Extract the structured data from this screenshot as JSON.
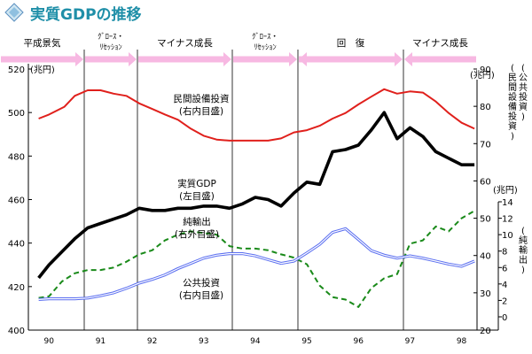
{
  "header": {
    "title": "実質GDPの推移",
    "colors": {
      "title": "#1f8fa8",
      "diamond_light": "#cfe6f2",
      "diamond_dark": "#5b8fbf"
    }
  },
  "phase_labels": [
    "平成景気",
    "ｸﾞﾛｰｽ・\nﾘｾｯｼｮﾝ",
    "マイナス成長",
    "ｸﾞﾛｰｽ・\nﾘｾｯｼｮﾝ",
    "回　復",
    "マイナス成長"
  ],
  "phase_arrow_color": "#f7b8e2",
  "chart_data": {
    "type": "line",
    "x_tick_labels": [
      "90",
      "91",
      "92",
      "93",
      "94",
      "95",
      "96",
      "97",
      "98"
    ],
    "xlim": [
      1989.6,
      1998.3
    ],
    "left_axis": {
      "unit_label": "(兆円)",
      "ylim": [
        400,
        520
      ],
      "ticks": [
        400,
        420,
        440,
        460,
        480,
        500,
        520
      ]
    },
    "right_inner_axis": {
      "unit_label": "(兆円)",
      "vertical_label": "(民間設備投資)",
      "ylim": [
        20,
        90
      ],
      "ticks": [
        20,
        30,
        40,
        50,
        60,
        70,
        80,
        90
      ]
    },
    "right_outer_axis": {
      "unit_label": "(兆円)",
      "vertical_label_top": "(公共投資)",
      "vertical_label_bottom": "(純輸出)",
      "ylim": [
        0,
        14
      ],
      "ticks": [
        0,
        2,
        4,
        6,
        8,
        10,
        12,
        14
      ]
    },
    "series": [
      {
        "name": "民間設備投資",
        "label_lines": [
          "民間設備投資",
          "(右内目盛)"
        ],
        "axis": "right_inner",
        "color": "#e0201c",
        "style": "solid",
        "x": [
          1989.8,
          1990.0,
          1990.3,
          1990.5,
          1990.75,
          1991.0,
          1991.25,
          1991.5,
          1991.75,
          1992.0,
          1992.25,
          1992.5,
          1992.75,
          1993.0,
          1993.25,
          1993.5,
          1993.75,
          1994.0,
          1994.25,
          1994.5,
          1994.75,
          1995.0,
          1995.25,
          1995.5,
          1995.75,
          1996.0,
          1996.25,
          1996.5,
          1996.75,
          1997.0,
          1997.25,
          1997.5,
          1997.75,
          1998.0,
          1998.25
        ],
        "values": [
          76.7,
          77.8,
          79.9,
          82.8,
          84.3,
          84.3,
          83.4,
          82.8,
          80.8,
          79.3,
          77.8,
          76.4,
          74.0,
          72.1,
          71.1,
          70.8,
          70.8,
          70.8,
          70.8,
          71.4,
          73.0,
          73.6,
          74.8,
          76.7,
          78.2,
          80.5,
          82.6,
          84.6,
          83.4,
          84.0,
          83.7,
          81.3,
          78.2,
          75.6,
          74.0
        ]
      },
      {
        "name": "実質GDP",
        "label_lines": [
          "実質GDP",
          "(左目盛)"
        ],
        "axis": "left",
        "color": "#000000",
        "style": "solid",
        "x": [
          1989.8,
          1990.0,
          1990.25,
          1990.5,
          1990.75,
          1991.0,
          1991.25,
          1991.5,
          1991.75,
          1992.0,
          1992.25,
          1992.5,
          1992.75,
          1993.0,
          1993.25,
          1993.5,
          1993.75,
          1994.0,
          1994.25,
          1994.5,
          1994.75,
          1995.0,
          1995.25,
          1995.5,
          1995.75,
          1996.0,
          1996.25,
          1996.5,
          1996.75,
          1997.0,
          1997.25,
          1997.5,
          1997.75,
          1998.0,
          1998.25
        ],
        "values": [
          424,
          430,
          436,
          442,
          447,
          449,
          451,
          453,
          456,
          455,
          455,
          456,
          456,
          457,
          457,
          456,
          458,
          461,
          460,
          457,
          463,
          468,
          467,
          482,
          483,
          485,
          492,
          500,
          488,
          493,
          489,
          482,
          479,
          476,
          476
        ]
      },
      {
        "name": "純輸出",
        "label_lines": [
          "純輸出",
          "(右外目盛)"
        ],
        "axis": "right_outer",
        "color": "#1a8a1a",
        "style": "dashed",
        "x": [
          1989.8,
          1990.0,
          1990.25,
          1990.5,
          1990.75,
          1991.0,
          1991.25,
          1991.5,
          1991.75,
          1992.0,
          1992.25,
          1992.5,
          1992.75,
          1993.0,
          1993.25,
          1993.5,
          1993.75,
          1994.0,
          1994.25,
          1994.5,
          1994.75,
          1995.0,
          1995.25,
          1995.5,
          1995.75,
          1996.0,
          1996.25,
          1996.5,
          1996.75,
          1997.0,
          1997.25,
          1997.5,
          1997.75,
          1998.0,
          1998.25
        ],
        "values": [
          2.3,
          2.5,
          4.3,
          5.3,
          5.7,
          5.7,
          6.0,
          6.7,
          7.6,
          8.1,
          9.3,
          10.0,
          10.4,
          10.2,
          10.0,
          8.6,
          8.3,
          8.3,
          8.1,
          7.6,
          7.2,
          6.4,
          3.8,
          2.4,
          2.1,
          1.2,
          3.5,
          4.7,
          5.2,
          8.9,
          9.3,
          11.0,
          10.4,
          12.0,
          12.9
        ]
      },
      {
        "name": "公共投資",
        "label_lines": [
          "公共投資",
          "(右内目盛)"
        ],
        "axis": "right_inner",
        "color": "#5a6ef0",
        "style": "double",
        "x": [
          1989.8,
          1990.0,
          1990.25,
          1990.5,
          1990.75,
          1991.0,
          1991.25,
          1991.5,
          1991.75,
          1992.0,
          1992.25,
          1992.5,
          1992.75,
          1993.0,
          1993.25,
          1993.5,
          1993.75,
          1994.0,
          1994.25,
          1994.5,
          1994.75,
          1995.0,
          1995.25,
          1995.5,
          1995.75,
          1996.0,
          1996.25,
          1996.5,
          1996.75,
          1997.0,
          1997.25,
          1997.5,
          1997.75,
          1998.0,
          1998.25
        ],
        "values": [
          28.2,
          28.4,
          28.4,
          28.4,
          28.6,
          29.2,
          30.0,
          31.2,
          32.6,
          33.6,
          34.8,
          36.5,
          37.9,
          39.3,
          40.1,
          40.5,
          40.5,
          39.9,
          38.9,
          37.9,
          38.5,
          40.7,
          43.0,
          46.2,
          47.2,
          44.3,
          41.3,
          40.1,
          39.3,
          39.9,
          39.3,
          38.5,
          37.7,
          37.1,
          38.5
        ]
      }
    ]
  }
}
